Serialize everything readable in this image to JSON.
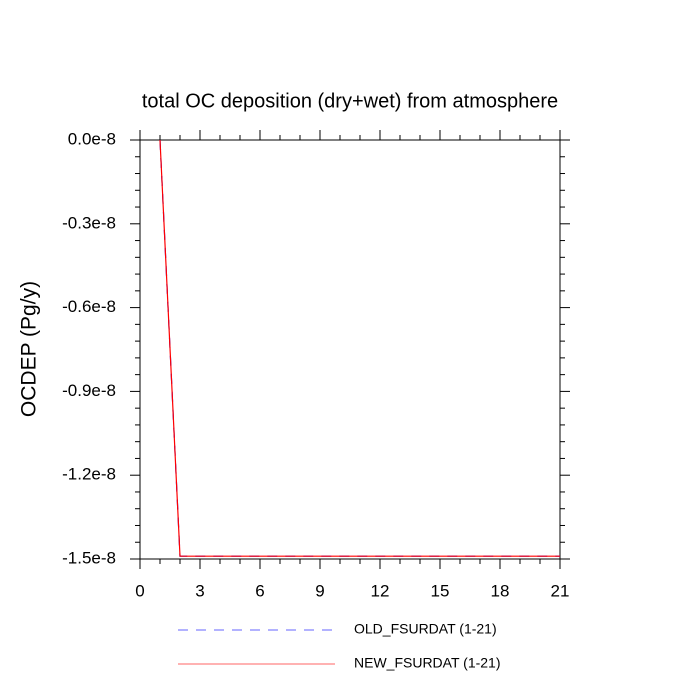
{
  "chart_data": {
    "type": "line",
    "title": "total OC deposition (dry+wet) from atmosphere",
    "y_label": "OCDEP  (Pg/y)",
    "x": [
      1,
      2,
      3,
      4,
      5,
      6,
      7,
      8,
      9,
      10,
      11,
      12,
      13,
      14,
      15,
      16,
      17,
      18,
      19,
      20,
      21
    ],
    "series": [
      {
        "name": "OLD_FSURDAT (1-21)",
        "color": "#0000ff",
        "line_style": "dashed",
        "values": [
          0,
          -1.49e-08,
          -1.49e-08,
          -1.49e-08,
          -1.49e-08,
          -1.49e-08,
          -1.49e-08,
          -1.49e-08,
          -1.49e-08,
          -1.49e-08,
          -1.49e-08,
          -1.49e-08,
          -1.49e-08,
          -1.49e-08,
          -1.49e-08,
          -1.49e-08,
          -1.49e-08,
          -1.49e-08,
          -1.49e-08,
          -1.49e-08,
          -1.49e-08
        ]
      },
      {
        "name": "NEW_FSURDAT (1-21)",
        "color": "#ff0000",
        "line_style": "solid",
        "values": [
          0,
          -1.49e-08,
          -1.49e-08,
          -1.49e-08,
          -1.49e-08,
          -1.49e-08,
          -1.49e-08,
          -1.49e-08,
          -1.49e-08,
          -1.49e-08,
          -1.49e-08,
          -1.49e-08,
          -1.49e-08,
          -1.49e-08,
          -1.49e-08,
          -1.49e-08,
          -1.49e-08,
          -1.49e-08,
          -1.49e-08,
          -1.49e-08,
          -1.49e-08
        ]
      }
    ],
    "xlim": [
      0,
      21
    ],
    "xticks": [
      0,
      3,
      6,
      9,
      12,
      15,
      18,
      21
    ],
    "ylim": [
      -1.5e-08,
      0
    ],
    "yticks": [
      {
        "value": 0,
        "label": "0.0e-8"
      },
      {
        "value": -3e-09,
        "label": "-0.3e-8"
      },
      {
        "value": -6e-09,
        "label": "-0.6e-8"
      },
      {
        "value": -9e-09,
        "label": "-0.9e-8"
      },
      {
        "value": -1.2e-08,
        "label": "-1.2e-8"
      },
      {
        "value": -1.5e-08,
        "label": "-1.5e-8"
      }
    ]
  }
}
